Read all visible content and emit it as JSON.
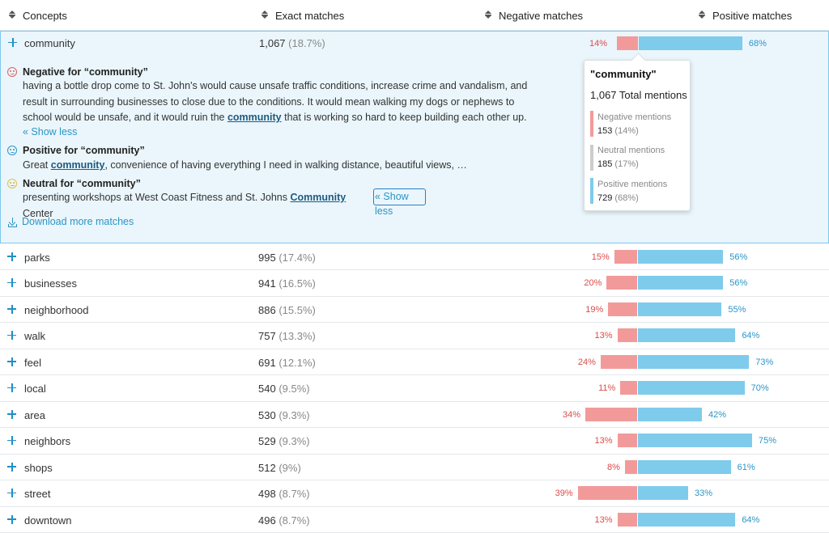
{
  "header": {
    "concepts": "Concepts",
    "exact": "Exact matches",
    "negative": "Negative matches",
    "positive": "Positive matches"
  },
  "expanded": {
    "label": "community",
    "count": "1,067",
    "pct": "(18.7%)",
    "neg_pct": "14%",
    "pos_pct": "68%",
    "neg_value": 14,
    "pos_value": 68,
    "negative_heading": "Negative for “community”",
    "negative_text_line1": "having a bottle drop come to St. John's would cause unsafe traffic conditions, increase crime and vandalism, and",
    "negative_text_line2": "result in surrounding businesses to close due to the conditions. It would mean walking my dogs or nephews to",
    "negative_text_line3_pre": "school would be unsafe, and it would ruin the ",
    "negative_keyword": "community",
    "negative_text_line3_post": " that is working so hard to keep building each other up.",
    "show_less_1": "« Show less",
    "positive_heading": "Positive for “community”",
    "positive_text_pre": "Great ",
    "positive_keyword": "community",
    "positive_text_post": ", convenience of having everything I need in walking distance, beautiful views, …",
    "neutral_heading": "Neutral for “community”",
    "neutral_text_pre": "presenting workshops at West Coast Fitness and St. Johns ",
    "neutral_keyword": "Community",
    "neutral_text_post": " Center",
    "show_less_2": "« Show less",
    "download": "Download more matches"
  },
  "tooltip": {
    "title": "\"community\"",
    "total": "1,067 Total mentions",
    "negative_label": "Negative mentions",
    "negative_count": "153",
    "negative_pct": "(14%)",
    "neutral_label": "Neutral mentions",
    "neutral_count": "185",
    "neutral_pct": "(17%)",
    "positive_label": "Positive mentions",
    "positive_count": "729",
    "positive_pct": "(68%)"
  },
  "colors": {
    "negative": "#f29a9a",
    "neutral": "#cccccc",
    "positive": "#7ecbec",
    "accent": "#2b95c6"
  },
  "rows": [
    {
      "label": "parks",
      "count": "995",
      "pct": "(17.4%)",
      "neg": 15,
      "pos": 56,
      "neg_text": "15%",
      "pos_text": "56%"
    },
    {
      "label": "businesses",
      "count": "941",
      "pct": "(16.5%)",
      "neg": 20,
      "pos": 56,
      "neg_text": "20%",
      "pos_text": "56%"
    },
    {
      "label": "neighborhood",
      "count": "886",
      "pct": "(15.5%)",
      "neg": 19,
      "pos": 55,
      "neg_text": "19%",
      "pos_text": "55%"
    },
    {
      "label": "walk",
      "count": "757",
      "pct": "(13.3%)",
      "neg": 13,
      "pos": 64,
      "neg_text": "13%",
      "pos_text": "64%"
    },
    {
      "label": "feel",
      "count": "691",
      "pct": "(12.1%)",
      "neg": 24,
      "pos": 73,
      "neg_text": "24%",
      "pos_text": "73%"
    },
    {
      "label": "local",
      "count": "540",
      "pct": "(9.5%)",
      "neg": 11,
      "pos": 70,
      "neg_text": "11%",
      "pos_text": "70%"
    },
    {
      "label": "area",
      "count": "530",
      "pct": "(9.3%)",
      "neg": 34,
      "pos": 42,
      "neg_text": "34%",
      "pos_text": "42%"
    },
    {
      "label": "neighbors",
      "count": "529",
      "pct": "(9.3%)",
      "neg": 13,
      "pos": 75,
      "neg_text": "13%",
      "pos_text": "75%"
    },
    {
      "label": "shops",
      "count": "512",
      "pct": "(9%)",
      "neg": 8,
      "pos": 61,
      "neg_text": "8%",
      "pos_text": "61%"
    },
    {
      "label": "street",
      "count": "498",
      "pct": "(8.7%)",
      "neg": 39,
      "pos": 33,
      "neg_text": "39%",
      "pos_text": "33%"
    },
    {
      "label": "downtown",
      "count": "496",
      "pct": "(8.7%)",
      "neg": 13,
      "pos": 64,
      "neg_text": "13%",
      "pos_text": "64%"
    }
  ]
}
